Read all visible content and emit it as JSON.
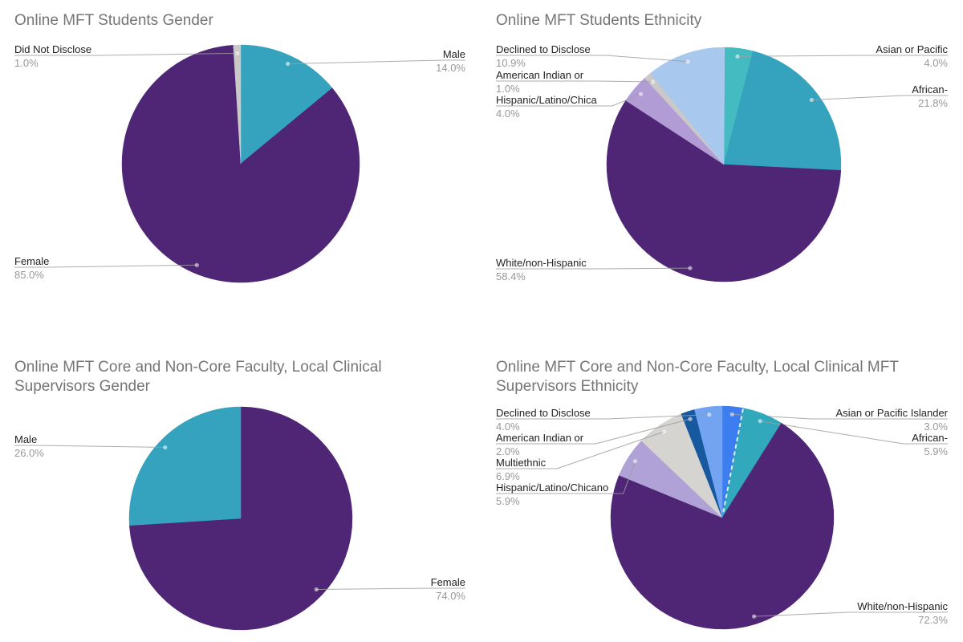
{
  "page": {
    "background": "#FFFFFF",
    "title_color": "#757575",
    "label_color": "#222222",
    "pct_color": "#989898",
    "leader_line_color": "#9E9E9E"
  },
  "chart_data": [
    {
      "type": "pie",
      "title_lines": [
        "Online MFT Students Gender"
      ],
      "legend_position": "labeled-callouts",
      "unit": "percent",
      "slices": [
        {
          "label": "Male",
          "value": 14.0,
          "pct_label": "14.0%",
          "color": "#35A3BE",
          "label_side": "right"
        },
        {
          "label": "Female",
          "value": 85.0,
          "pct_label": "85.0%",
          "color": "#4F2676",
          "label_side": "left"
        },
        {
          "label": "Did Not Disclose",
          "value": 1.0,
          "pct_label": "1.0%",
          "color": "#CBC9C7",
          "label_side": "left"
        }
      ]
    },
    {
      "type": "pie",
      "title_lines": [
        "Online MFT Students Ethnicity"
      ],
      "legend_position": "labeled-callouts",
      "unit": "percent",
      "slices": [
        {
          "label": "Asian or Pacific",
          "value": 4.0,
          "pct_label": "4.0%",
          "color": "#43BBC0",
          "label_side": "right"
        },
        {
          "label": "African-",
          "value": 21.8,
          "pct_label": "21.8%",
          "color": "#35A3BE",
          "label_side": "right"
        },
        {
          "label": "White/non-Hispanic",
          "value": 58.4,
          "pct_label": "58.4%",
          "color": "#4F2676",
          "label_side": "left"
        },
        {
          "label": "Hispanic/Latino/Chica",
          "value": 4.0,
          "pct_label": "4.0%",
          "color": "#B29CD6",
          "label_side": "left"
        },
        {
          "label": "American Indian or",
          "value": 1.0,
          "pct_label": "1.0%",
          "color": "#CBC9C7",
          "label_side": "left"
        },
        {
          "label": "Declined to Disclose",
          "value": 10.9,
          "pct_label": "10.9%",
          "color": "#A8C8EE",
          "label_side": "left"
        }
      ]
    },
    {
      "type": "pie",
      "title_lines": [
        "Online MFT Core and Non-Core Faculty, Local Clinical",
        "Supervisors Gender"
      ],
      "legend_position": "labeled-callouts",
      "unit": "percent",
      "slices": [
        {
          "label": "Female",
          "value": 74.0,
          "pct_label": "74.0%",
          "color": "#4F2676",
          "label_side": "right"
        },
        {
          "label": "Male",
          "value": 26.0,
          "pct_label": "26.0%",
          "color": "#35A3BE",
          "label_side": "left"
        }
      ]
    },
    {
      "type": "pie",
      "title_lines": [
        "Online MFT Core and Non-Core Faculty, Local Clinical MFT",
        "Supervisors Ethnicity"
      ],
      "legend_position": "labeled-callouts",
      "unit": "percent",
      "slices": [
        {
          "label": "Asian or Pacific Islander",
          "value": 3.0,
          "pct_label": "3.0%",
          "color": "#3C7DF0",
          "label_side": "right"
        },
        {
          "label": "African-",
          "value": 5.9,
          "pct_label": "5.9%",
          "color": "#31A8BC",
          "label_side": "right"
        },
        {
          "label": "White/non-Hispanic",
          "value": 72.3,
          "pct_label": "72.3%",
          "color": "#4F2676",
          "label_side": "right"
        },
        {
          "label": "Hispanic/Latino/Chicano",
          "value": 5.9,
          "pct_label": "5.9%",
          "color": "#B0A2D6",
          "label_side": "left"
        },
        {
          "label": "Multiethnic",
          "value": 6.9,
          "pct_label": "6.9%",
          "color": "#D6D4D0",
          "label_side": "left"
        },
        {
          "label": "American Indian or",
          "value": 2.0,
          "pct_label": "2.0%",
          "color": "#17599F",
          "label_side": "left"
        },
        {
          "label": "Declined to Disclose",
          "value": 4.0,
          "pct_label": "4.0%",
          "color": "#72A4F2",
          "label_side": "left"
        }
      ]
    }
  ]
}
